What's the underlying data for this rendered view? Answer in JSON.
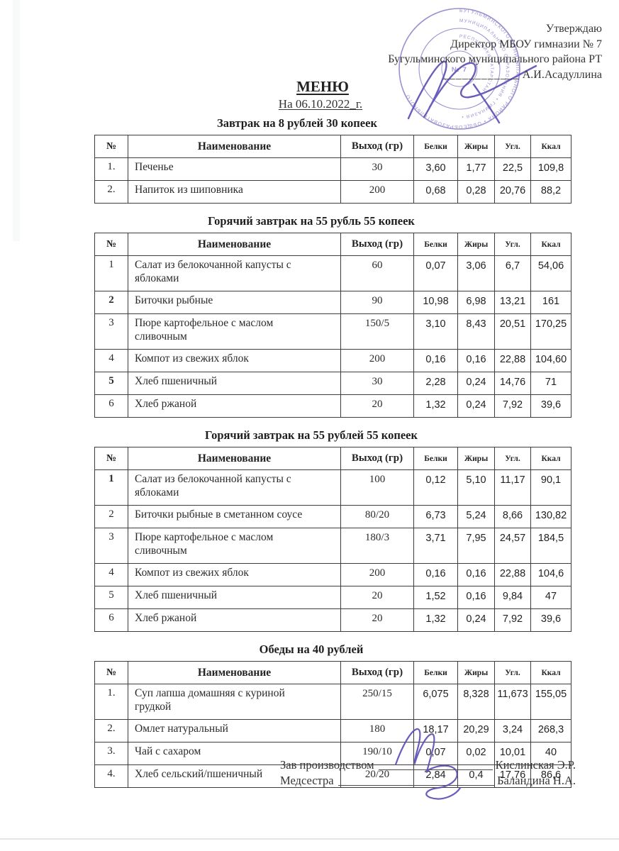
{
  "approval": {
    "lines": [
      "Утверждаю",
      "Директор МБОУ гимназии № 7",
      "Бугульминского муниципального района РТ"
    ],
    "blank": "____________",
    "signed_name": "А.И.Асадуллина"
  },
  "title": "МЕНЮ",
  "date_line": "На 06.10.2022_г.",
  "columns": [
    "№",
    "Наименование",
    "Выход (гр)",
    "Белки",
    "Жиры",
    "Угл.",
    "Ккал"
  ],
  "tables": [
    {
      "title": "Завтрак на 8 рублей 30 копеек",
      "rows": [
        {
          "num": "1.",
          "name": "Печенье",
          "out": "30",
          "protein": "3,60",
          "fat": "1,77",
          "carbs": "22,5",
          "kcal": "109,8"
        },
        {
          "num": "2.",
          "name": "Напиток из шиповника",
          "out": "200",
          "protein": "0,68",
          "fat": "0,28",
          "carbs": "20,76",
          "kcal": "88,2"
        }
      ]
    },
    {
      "title": "Горячий завтрак на 55 рубль 55 копеек",
      "rows": [
        {
          "num": "1",
          "name": "Салат из белокочанной капусты с\nяблоками",
          "out": "60",
          "protein": "0,07",
          "fat": "3,06",
          "carbs": "6,7",
          "kcal": "54,06"
        },
        {
          "num": "2",
          "num_bold": true,
          "name": "Биточки рыбные",
          "out": "90",
          "protein": "10,98",
          "fat": "6,98",
          "carbs": "13,21",
          "kcal": "161"
        },
        {
          "num": "3",
          "name": "Пюре картофельное с маслом\nсливочным",
          "out": "150/5",
          "protein": "3,10",
          "fat": "8,43",
          "carbs": "20,51",
          "kcal": "170,25"
        },
        {
          "num": "4",
          "name": "Компот из свежих яблок",
          "out": "200",
          "protein": "0,16",
          "fat": "0,16",
          "carbs": "22,88",
          "kcal": "104,60"
        },
        {
          "num": "5",
          "num_bold": true,
          "name": "Хлеб пшеничный",
          "out": "30",
          "protein": "2,28",
          "fat": "0,24",
          "carbs": "14,76",
          "kcal": "71"
        },
        {
          "num": "6",
          "name": "Хлеб ржаной",
          "out": "20",
          "protein": "1,32",
          "fat": "0,24",
          "carbs": "7,92",
          "kcal": "39,6"
        }
      ]
    },
    {
      "title": "Горячий завтрак на 55 рублей 55 копеек",
      "rows": [
        {
          "num": "1",
          "num_bold": true,
          "name": "Салат из белокочанной капусты с\nяблоками",
          "out": "100",
          "protein": "0,12",
          "fat": "5,10",
          "carbs": "11,17",
          "kcal": "90,1"
        },
        {
          "num": "2",
          "name": "Биточки рыбные в сметанном соусе",
          "out": "80/20",
          "protein": "6,73",
          "fat": "5,24",
          "carbs": "8,66",
          "kcal": "130,82"
        },
        {
          "num": "3",
          "name": "Пюре картофельное с маслом\nсливочным",
          "out": "180/3",
          "protein": "3,71",
          "fat": "7,95",
          "carbs": "24,57",
          "kcal": "184,5"
        },
        {
          "num": "4",
          "name": "Компот из свежих яблок",
          "out": "200",
          "protein": "0,16",
          "fat": "0,16",
          "carbs": "22,88",
          "kcal": "104,6"
        },
        {
          "num": "5",
          "name": "Хлеб пшеничный",
          "out": "20",
          "protein": "1,52",
          "fat": "0,16",
          "carbs": "9,84",
          "kcal": "47"
        },
        {
          "num": "6",
          "name": "Хлеб ржаной",
          "out": "20",
          "protein": "1,32",
          "fat": "0,24",
          "carbs": "7,92",
          "kcal": "39,6"
        }
      ]
    },
    {
      "title": "Обеды на 40 рублей",
      "rows": [
        {
          "num": "1.",
          "name": "Суп лапша домашняя с куриной\nгрудкой",
          "out": "250/15",
          "protein": "6,075",
          "fat": "8,328",
          "carbs": "11,673",
          "kcal": "155,05"
        },
        {
          "num": "2.",
          "name": "Омлет натуральный",
          "out": "180",
          "protein": "18,17",
          "fat": "20,29",
          "carbs": "3,24",
          "kcal": "268,3"
        },
        {
          "num": "3.",
          "name": "Чай с сахаром",
          "out": "190/10",
          "protein": "0,07",
          "fat": "0,02",
          "carbs": "10,01",
          "kcal": "40"
        },
        {
          "num": "4.",
          "name": "Хлеб сельский/пшеничный",
          "out": "20/20",
          "protein": "2,84",
          "fat": "0,4",
          "carbs": "17,76",
          "kcal": "86,6"
        }
      ]
    }
  ],
  "signatures": [
    {
      "role": "Зав производством",
      "name": "Кислинская Э.Р."
    },
    {
      "role": "Медсестра",
      "name": "Баландина Н.А."
    }
  ],
  "stamp": {
    "ring1": "БУГУЛЬМИНСКОГО МУНИЦИПАЛЬНОГО РАЙОНА • ОБЩЕОБРАЗОВАТЕЛЬНОГО ",
    "ring2": "МУНИЦИПАЛЬНОГО ОБРАЗОВАНИЯ • ГИМНАЗИЯ • ",
    "ring3": "РЕСПУБЛИКИ ТАТАРСТАН • ",
    "center": "№ 7",
    "ink_color": "#8579c7"
  }
}
